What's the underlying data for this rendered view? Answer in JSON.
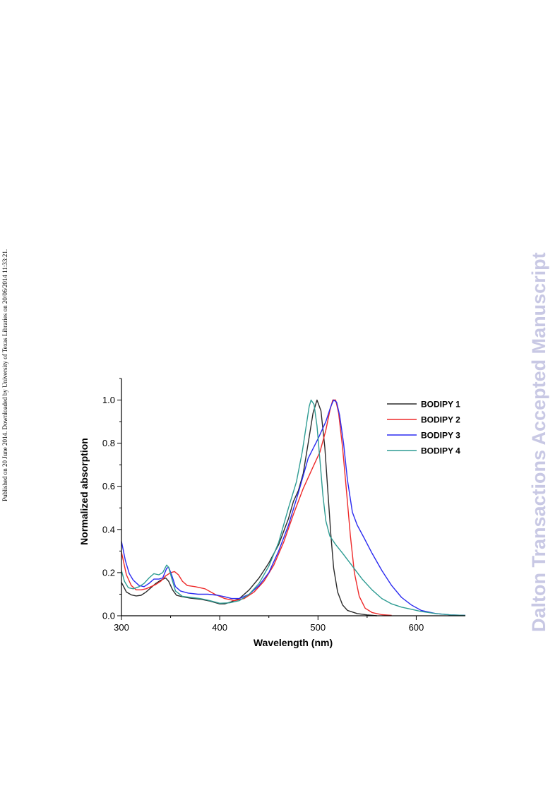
{
  "side_note": "Published on 20 June 2014. Downloaded by University of Texas Libraries on 20/06/2014 11:33:21.",
  "watermark": "Dalton Transactions Accepted Manuscript",
  "chart_data": {
    "type": "line",
    "title": "",
    "xlabel": "Wavelength (nm)",
    "ylabel": "Normalized absorption",
    "xlim": [
      300,
      650
    ],
    "ylim": [
      0.0,
      1.1
    ],
    "x_ticks": [
      300,
      400,
      500,
      600
    ],
    "x_tick_labels": [
      "300",
      "400",
      "500",
      "600"
    ],
    "y_ticks": [
      0.0,
      0.2,
      0.4,
      0.6,
      0.8,
      1.0
    ],
    "y_tick_labels": [
      "0.0",
      "0.2",
      "0.4",
      "0.6",
      "0.8",
      "1.0"
    ],
    "grid": false,
    "legend_position": "top-right",
    "series": [
      {
        "name": "BODIPY 1",
        "color": "#2b2b2b",
        "points": [
          [
            300,
            0.155
          ],
          [
            305,
            0.11
          ],
          [
            310,
            0.097
          ],
          [
            315,
            0.092
          ],
          [
            320,
            0.095
          ],
          [
            325,
            0.11
          ],
          [
            330,
            0.13
          ],
          [
            335,
            0.15
          ],
          [
            340,
            0.165
          ],
          [
            345,
            0.175
          ],
          [
            348,
            0.16
          ],
          [
            352,
            0.12
          ],
          [
            356,
            0.095
          ],
          [
            362,
            0.088
          ],
          [
            370,
            0.082
          ],
          [
            380,
            0.077
          ],
          [
            390,
            0.068
          ],
          [
            400,
            0.055
          ],
          [
            405,
            0.055
          ],
          [
            410,
            0.062
          ],
          [
            420,
            0.08
          ],
          [
            430,
            0.12
          ],
          [
            440,
            0.175
          ],
          [
            450,
            0.245
          ],
          [
            460,
            0.33
          ],
          [
            470,
            0.45
          ],
          [
            475,
            0.53
          ],
          [
            480,
            0.58
          ],
          [
            485,
            0.66
          ],
          [
            490,
            0.8
          ],
          [
            495,
            0.94
          ],
          [
            499,
            1.0
          ],
          [
            503,
            0.95
          ],
          [
            507,
            0.78
          ],
          [
            510,
            0.58
          ],
          [
            513,
            0.38
          ],
          [
            516,
            0.22
          ],
          [
            520,
            0.11
          ],
          [
            525,
            0.05
          ],
          [
            530,
            0.025
          ],
          [
            540,
            0.01
          ],
          [
            550,
            0.004
          ],
          [
            560,
            0.0
          ]
        ]
      },
      {
        "name": "BODIPY 2",
        "color": "#ee2a2a",
        "points": [
          [
            300,
            0.295
          ],
          [
            305,
            0.19
          ],
          [
            310,
            0.14
          ],
          [
            315,
            0.12
          ],
          [
            320,
            0.12
          ],
          [
            325,
            0.125
          ],
          [
            330,
            0.135
          ],
          [
            335,
            0.145
          ],
          [
            340,
            0.16
          ],
          [
            345,
            0.185
          ],
          [
            350,
            0.2
          ],
          [
            354,
            0.205
          ],
          [
            358,
            0.19
          ],
          [
            362,
            0.16
          ],
          [
            367,
            0.14
          ],
          [
            375,
            0.135
          ],
          [
            385,
            0.125
          ],
          [
            395,
            0.1
          ],
          [
            405,
            0.08
          ],
          [
            415,
            0.07
          ],
          [
            425,
            0.08
          ],
          [
            435,
            0.11
          ],
          [
            445,
            0.16
          ],
          [
            455,
            0.235
          ],
          [
            465,
            0.34
          ],
          [
            475,
            0.47
          ],
          [
            485,
            0.59
          ],
          [
            495,
            0.69
          ],
          [
            502,
            0.76
          ],
          [
            508,
            0.86
          ],
          [
            512,
            0.95
          ],
          [
            515,
            1.0
          ],
          [
            518,
            1.0
          ],
          [
            521,
            0.94
          ],
          [
            525,
            0.78
          ],
          [
            529,
            0.58
          ],
          [
            533,
            0.37
          ],
          [
            537,
            0.2
          ],
          [
            542,
            0.09
          ],
          [
            548,
            0.035
          ],
          [
            555,
            0.015
          ],
          [
            565,
            0.005
          ],
          [
            575,
            0.002
          ]
        ]
      },
      {
        "name": "BODIPY 3",
        "color": "#2b2bf0",
        "points": [
          [
            300,
            0.345
          ],
          [
            304,
            0.255
          ],
          [
            308,
            0.195
          ],
          [
            312,
            0.165
          ],
          [
            318,
            0.14
          ],
          [
            323,
            0.135
          ],
          [
            328,
            0.15
          ],
          [
            333,
            0.17
          ],
          [
            338,
            0.17
          ],
          [
            342,
            0.175
          ],
          [
            346,
            0.22
          ],
          [
            348,
            0.225
          ],
          [
            351,
            0.19
          ],
          [
            355,
            0.135
          ],
          [
            360,
            0.115
          ],
          [
            368,
            0.105
          ],
          [
            378,
            0.1
          ],
          [
            388,
            0.1
          ],
          [
            398,
            0.095
          ],
          [
            405,
            0.088
          ],
          [
            412,
            0.08
          ],
          [
            420,
            0.08
          ],
          [
            430,
            0.1
          ],
          [
            440,
            0.14
          ],
          [
            450,
            0.2
          ],
          [
            460,
            0.3
          ],
          [
            470,
            0.42
          ],
          [
            480,
            0.57
          ],
          [
            490,
            0.73
          ],
          [
            500,
            0.82
          ],
          [
            508,
            0.9
          ],
          [
            513,
            0.97
          ],
          [
            516,
            1.0
          ],
          [
            519,
            0.99
          ],
          [
            522,
            0.93
          ],
          [
            526,
            0.8
          ],
          [
            530,
            0.63
          ],
          [
            535,
            0.48
          ],
          [
            540,
            0.42
          ],
          [
            547,
            0.36
          ],
          [
            555,
            0.29
          ],
          [
            565,
            0.21
          ],
          [
            575,
            0.14
          ],
          [
            585,
            0.085
          ],
          [
            595,
            0.05
          ],
          [
            605,
            0.025
          ],
          [
            620,
            0.01
          ],
          [
            635,
            0.004
          ],
          [
            650,
            0.002
          ]
        ]
      },
      {
        "name": "BODIPY 4",
        "color": "#2e9c93",
        "points": [
          [
            300,
            0.21
          ],
          [
            303,
            0.16
          ],
          [
            307,
            0.13
          ],
          [
            312,
            0.125
          ],
          [
            318,
            0.135
          ],
          [
            323,
            0.15
          ],
          [
            328,
            0.175
          ],
          [
            333,
            0.195
          ],
          [
            338,
            0.19
          ],
          [
            342,
            0.2
          ],
          [
            346,
            0.235
          ],
          [
            348,
            0.225
          ],
          [
            351,
            0.175
          ],
          [
            355,
            0.115
          ],
          [
            362,
            0.09
          ],
          [
            370,
            0.085
          ],
          [
            380,
            0.08
          ],
          [
            390,
            0.07
          ],
          [
            400,
            0.058
          ],
          [
            410,
            0.06
          ],
          [
            420,
            0.07
          ],
          [
            430,
            0.1
          ],
          [
            440,
            0.15
          ],
          [
            450,
            0.23
          ],
          [
            460,
            0.34
          ],
          [
            470,
            0.5
          ],
          [
            478,
            0.62
          ],
          [
            484,
            0.76
          ],
          [
            488,
            0.88
          ],
          [
            491,
            0.97
          ],
          [
            493,
            1.0
          ],
          [
            496,
            0.98
          ],
          [
            499,
            0.88
          ],
          [
            502,
            0.72
          ],
          [
            505,
            0.56
          ],
          [
            508,
            0.44
          ],
          [
            512,
            0.37
          ],
          [
            518,
            0.33
          ],
          [
            525,
            0.29
          ],
          [
            535,
            0.23
          ],
          [
            545,
            0.17
          ],
          [
            555,
            0.12
          ],
          [
            565,
            0.08
          ],
          [
            575,
            0.055
          ],
          [
            585,
            0.04
          ],
          [
            595,
            0.03
          ],
          [
            605,
            0.02
          ],
          [
            620,
            0.01
          ],
          [
            635,
            0.004
          ],
          [
            650,
            0.002
          ]
        ]
      }
    ]
  }
}
